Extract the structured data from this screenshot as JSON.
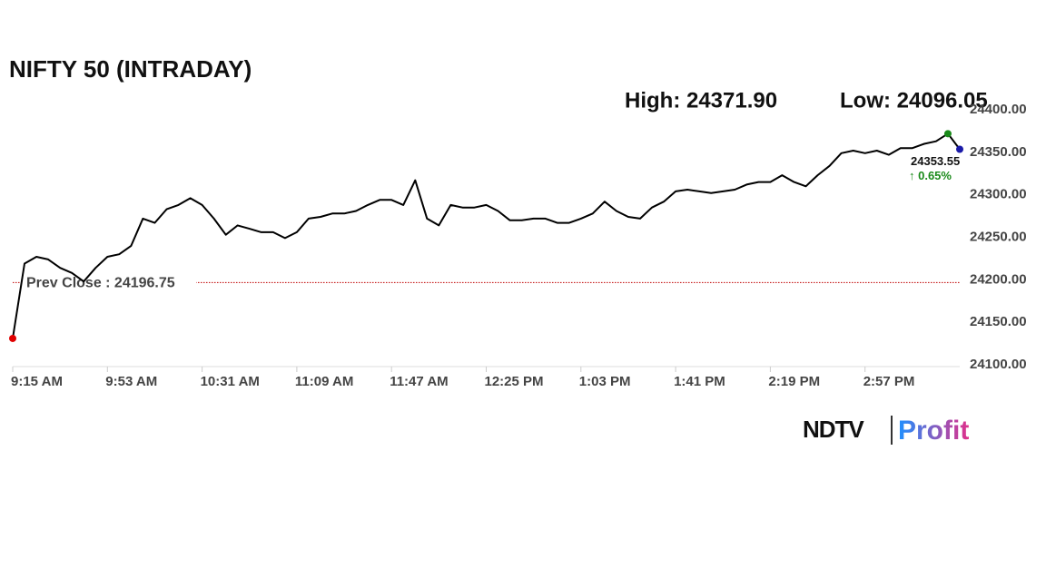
{
  "chart_data": {
    "type": "line",
    "title": "NIFTY 50 (INTRADAY)",
    "high_label": "High: 24371.90",
    "low_label": "Low: 24096.05",
    "prev_close": {
      "value": 24196.75,
      "label": "Prev Close : 24196.75"
    },
    "last_label": "24353.55",
    "change_label": "↑ 0.65%",
    "brand": [
      "NDTV",
      "Profit"
    ],
    "categories": [
      "9:15 AM",
      null,
      null,
      null,
      null,
      null,
      null,
      null,
      "9:53 AM",
      null,
      null,
      null,
      null,
      null,
      null,
      null,
      "10:31 AM",
      null,
      null,
      null,
      null,
      null,
      null,
      null,
      "11:09 AM",
      null,
      null,
      null,
      null,
      null,
      null,
      null,
      "11:47 AM",
      null,
      null,
      null,
      null,
      null,
      null,
      null,
      "12:25 PM",
      null,
      null,
      null,
      null,
      null,
      null,
      null,
      "1:03 PM",
      null,
      null,
      null,
      null,
      null,
      null,
      null,
      "1:41 PM",
      null,
      null,
      null,
      null,
      null,
      null,
      null,
      "2:19 PM",
      null,
      null,
      null,
      null,
      null,
      null,
      null,
      "2:57 PM",
      null,
      null,
      null,
      null,
      null,
      null,
      null,
      null
    ],
    "series": [
      {
        "color": "#000000",
        "values": [
          24131,
          24219,
          24227,
          24224,
          24214,
          24208,
          24198,
          24214,
          24227,
          24230,
          24240,
          24272,
          24267,
          24283,
          24288,
          24296,
          24288,
          24272,
          24253,
          24264,
          24260,
          24256,
          24256,
          24249,
          24256,
          24272,
          24274,
          24278,
          24278,
          24281,
          24288,
          24294,
          24294,
          24288,
          24317,
          24272,
          24264,
          24288,
          24285,
          24285,
          24288,
          24281,
          24270,
          24270,
          24272,
          24272,
          24267,
          24267,
          24272,
          24278,
          24292,
          24281,
          24274,
          24272,
          24285,
          24292,
          24304,
          24306,
          24304,
          24302,
          24304,
          24306,
          24312,
          24315,
          24315,
          24323,
          24315,
          24310,
          24323,
          24334,
          24349,
          24352,
          24349,
          24352,
          24347,
          24355,
          24355,
          24360,
          24363,
          24371.9,
          24353.55
        ]
      }
    ],
    "marker_colors": {
      "start": "#e00000",
      "high": "#1a8a1a",
      "end": "#1a1aa8"
    },
    "prev_close_color": "#c00000",
    "change_color": "#1a8a1a",
    "ylim": [
      24100,
      24400
    ],
    "yticks": [
      {
        "value": 24100,
        "label": "24100.00"
      },
      {
        "value": 24150,
        "label": "24150.00"
      },
      {
        "value": 24200,
        "label": "24200.00"
      },
      {
        "value": 24250,
        "label": "24250.00"
      },
      {
        "value": 24300,
        "label": "24300.00"
      },
      {
        "value": 24350,
        "label": "24350.00"
      },
      {
        "value": 24400,
        "label": "24400.00"
      }
    ],
    "grid": false
  }
}
